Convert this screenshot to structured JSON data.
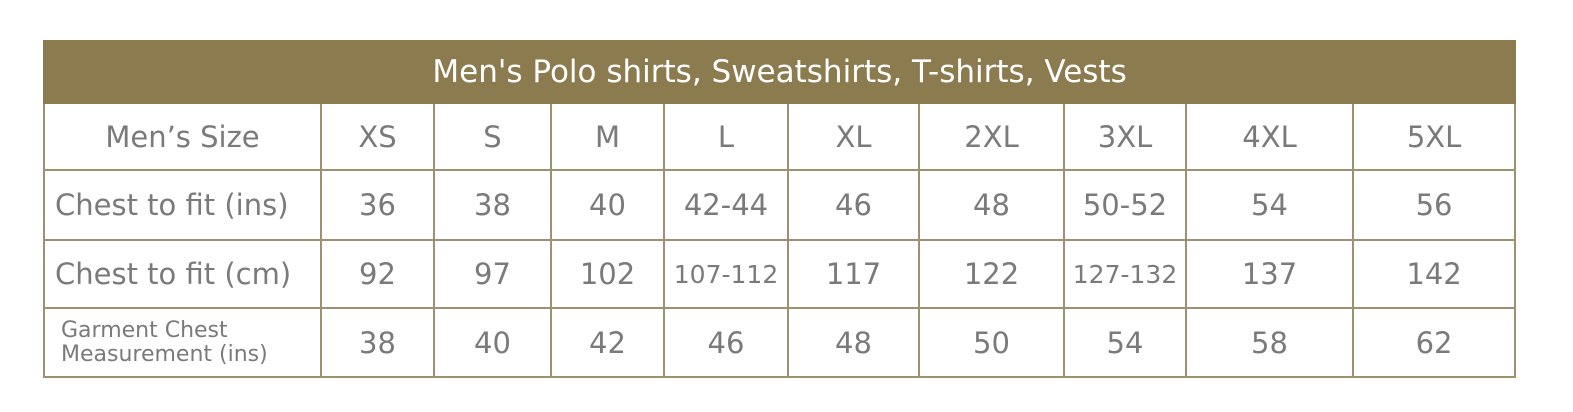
{
  "table": {
    "title": "Men's Polo shirts, Sweatshirts, T-shirts, Vests",
    "header": [
      "Men’s Size",
      "XS",
      "S",
      "M",
      "L",
      "XL",
      "2XL",
      "3XL",
      "4XL",
      "5XL"
    ],
    "rows": [
      [
        "Chest to fit (ins)",
        "36",
        "38",
        "40",
        "42-44",
        "46",
        "48",
        "50-52",
        "54",
        "56"
      ],
      [
        "Chest to fit (cm)",
        "92",
        "97",
        "102",
        "107-112",
        "117",
        "122",
        "127-132",
        "137",
        "142"
      ],
      [
        "Garment Chest Measurement (ins)",
        "38",
        "40",
        "42",
        "46",
        "48",
        "50",
        "54",
        "58",
        "62"
      ]
    ]
  }
}
